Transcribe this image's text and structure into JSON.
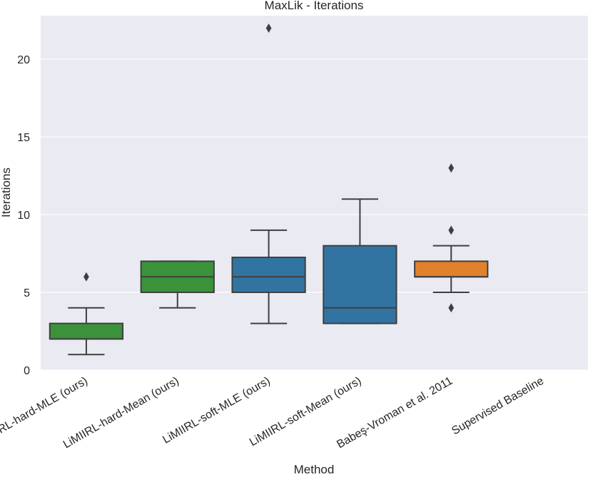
{
  "chart_data": {
    "type": "box",
    "title": "MaxLik - Iterations",
    "xlabel": "Method",
    "ylabel": "Iterations",
    "ylim": [
      0,
      22.8
    ],
    "yticks": [
      0,
      5,
      10,
      15,
      20
    ],
    "grid": true,
    "categories": [
      "LiMIIRL-hard-MLE (ours)",
      "LiMIIRL-hard-Mean (ours)",
      "LiMIIRL-soft-MLE (ours)",
      "LiMIIRL-soft-Mean (ours)",
      "Babeş-Vroman et al. 2011",
      "Supervised Baseline"
    ],
    "boxes": [
      {
        "color": "#3a923a",
        "whisker_low": 1,
        "q1": 2,
        "median": 2,
        "q3": 3,
        "whisker_high": 4,
        "outliers": [
          6
        ]
      },
      {
        "color": "#3a923a",
        "whisker_low": 4,
        "q1": 5,
        "median": 6,
        "q3": 7,
        "whisker_high": 7,
        "outliers": []
      },
      {
        "color": "#3274a1",
        "whisker_low": 3,
        "q1": 5,
        "median": 6,
        "q3": 7.25,
        "whisker_high": 9,
        "outliers": [
          22
        ]
      },
      {
        "color": "#3274a1",
        "whisker_low": 3,
        "q1": 3,
        "median": 4,
        "q3": 8,
        "whisker_high": 11,
        "outliers": []
      },
      {
        "color": "#e1812c",
        "whisker_low": 5,
        "q1": 6,
        "median": 6,
        "q3": 7,
        "whisker_high": 8,
        "outliers": [
          4,
          9,
          13
        ]
      },
      null
    ]
  }
}
